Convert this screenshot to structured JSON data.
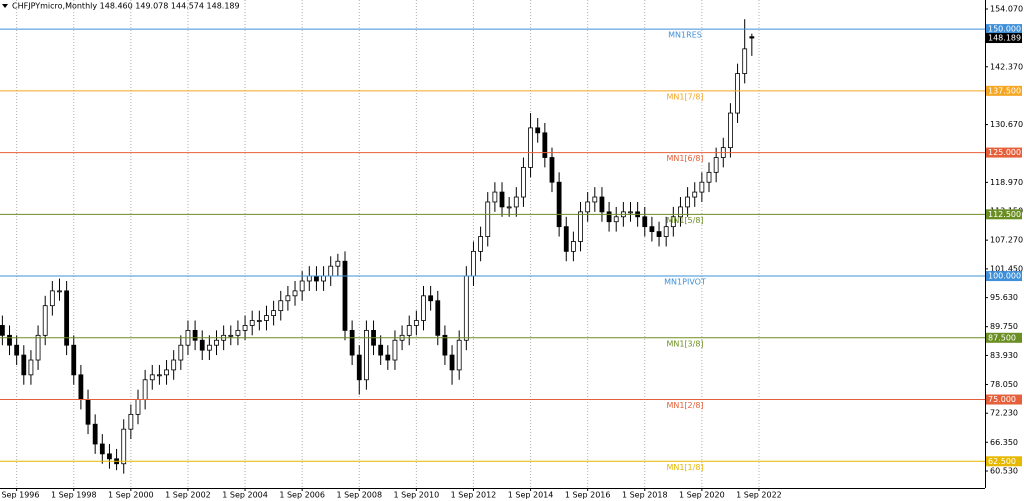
{
  "chart_data": {
    "type": "candlestick",
    "title": "CHFJPYmicro,Monthly 148.460 149.078 144.574 148.189",
    "x": [
      "1996-03",
      "1996-06",
      "1996-09",
      "1996-12",
      "1997-03",
      "1997-06",
      "1997-09",
      "1997-12",
      "1998-03",
      "1998-06",
      "1998-09",
      "1998-12",
      "1999-03",
      "1999-06",
      "1999-09",
      "1999-12",
      "2000-03",
      "2000-06",
      "2000-09",
      "2000-12",
      "2001-03",
      "2001-06",
      "2001-09",
      "2001-12",
      "2002-03",
      "2002-06",
      "2002-09",
      "2002-12",
      "2003-03",
      "2003-06",
      "2003-09",
      "2003-12",
      "2004-03",
      "2004-06",
      "2004-09",
      "2004-12",
      "2005-03",
      "2005-06",
      "2005-09",
      "2005-12",
      "2006-03",
      "2006-06",
      "2006-09",
      "2006-12",
      "2007-03",
      "2007-06",
      "2007-09",
      "2007-12",
      "2008-03",
      "2008-06",
      "2008-09",
      "2008-12",
      "2009-03",
      "2009-06",
      "2009-09",
      "2009-12",
      "2010-03",
      "2010-06",
      "2010-09",
      "2010-12",
      "2011-03",
      "2011-06",
      "2011-09",
      "2011-12",
      "2012-03",
      "2012-06",
      "2012-09",
      "2012-12",
      "2013-03",
      "2013-06",
      "2013-09",
      "2013-12",
      "2014-03",
      "2014-06",
      "2014-09",
      "2014-12",
      "2015-03",
      "2015-06",
      "2015-09",
      "2015-12",
      "2016-03",
      "2016-06",
      "2016-09",
      "2016-12",
      "2017-03",
      "2017-06",
      "2017-09",
      "2017-12",
      "2018-03",
      "2018-06",
      "2018-09",
      "2018-12",
      "2019-03",
      "2019-06",
      "2019-09",
      "2019-12",
      "2020-03",
      "2020-06",
      "2020-09",
      "2020-12",
      "2021-03",
      "2021-06",
      "2021-09",
      "2021-12",
      "2022-03",
      "2022-06"
    ],
    "open": [
      90,
      88,
      86,
      84,
      80,
      83,
      88,
      94,
      97,
      97,
      86,
      80,
      75,
      70,
      66,
      64,
      63,
      62,
      69,
      72,
      75,
      79,
      80,
      80,
      81,
      83,
      86,
      89,
      87,
      85,
      86,
      87,
      88,
      88,
      89,
      90,
      91,
      91,
      92,
      93,
      95,
      96,
      97,
      99,
      100,
      99,
      100,
      102,
      103,
      89,
      84,
      79,
      89,
      86,
      84,
      83,
      87,
      88,
      90,
      91,
      96,
      95,
      88,
      84,
      81,
      87,
      100,
      105,
      108,
      115,
      117,
      114,
      114,
      116,
      122,
      130,
      129,
      124,
      119,
      110,
      105,
      107,
      113,
      115,
      116,
      113,
      111,
      112,
      113,
      113,
      112,
      110,
      109,
      108,
      110,
      112,
      114,
      116,
      117,
      119,
      121,
      124,
      126,
      133,
      141,
      148.46
    ],
    "high": [
      92,
      90,
      88,
      86,
      85,
      90,
      96,
      99,
      99.5,
      99,
      88,
      82,
      77,
      72,
      68,
      66,
      65,
      71,
      74,
      77,
      81,
      82,
      82,
      83,
      85,
      88,
      91,
      91,
      89,
      88,
      89,
      90,
      90,
      91,
      92,
      93,
      93,
      94,
      95,
      97,
      98,
      99,
      101,
      102,
      102,
      102,
      104,
      104.5,
      105,
      91,
      86,
      91,
      91,
      88,
      86,
      89,
      90,
      92,
      93,
      98,
      98,
      97,
      90,
      86,
      89,
      102,
      107,
      110,
      117,
      119,
      119,
      116,
      118,
      124,
      133,
      132,
      131,
      126,
      121,
      112,
      109,
      115,
      117,
      118,
      118,
      115,
      114,
      115,
      115,
      115,
      114,
      112,
      111,
      112,
      114,
      116,
      118,
      119,
      121,
      123,
      126,
      128,
      135,
      143,
      152,
      149.078
    ],
    "low": [
      86,
      84,
      82,
      78,
      78,
      81,
      86,
      92,
      95,
      84,
      78,
      73,
      68,
      64,
      62,
      61,
      60.7,
      60,
      67,
      70,
      73,
      77,
      78,
      78,
      79,
      81,
      84,
      85,
      83,
      83,
      84,
      85,
      86,
      86,
      87,
      88,
      89,
      89,
      90,
      91,
      93,
      94,
      95,
      97,
      97,
      97,
      98,
      100,
      87,
      82,
      76,
      77,
      84,
      82,
      81,
      81,
      85,
      86,
      88,
      89,
      93,
      86,
      82,
      78,
      79,
      85,
      98,
      103,
      106,
      113,
      112,
      112,
      112,
      114,
      120,
      127,
      122,
      117,
      108,
      103,
      103,
      105,
      111,
      113,
      111,
      109,
      109,
      110,
      111,
      110,
      108,
      107,
      106,
      106,
      108,
      110,
      112,
      114,
      115,
      117,
      119,
      122,
      124,
      131,
      139,
      144.574
    ],
    "close": [
      88,
      86,
      84,
      80,
      83,
      88,
      94,
      97,
      97,
      86,
      80,
      75,
      70,
      66,
      64,
      63,
      62,
      69,
      72,
      75,
      79,
      80,
      80,
      81,
      83,
      86,
      89,
      87,
      85,
      86,
      87,
      88,
      88,
      89,
      90,
      91,
      91,
      92,
      93,
      95,
      96,
      97,
      99,
      100,
      99,
      100,
      102,
      103,
      89,
      84,
      79,
      89,
      86,
      84,
      83,
      87,
      88,
      90,
      91,
      96,
      95,
      88,
      84,
      81,
      87,
      100,
      105,
      108,
      115,
      117,
      114,
      114,
      116,
      122,
      130,
      129,
      124,
      119,
      110,
      105,
      107,
      113,
      115,
      116,
      113,
      111,
      112,
      113,
      113,
      112,
      110,
      109,
      108,
      110,
      112,
      114,
      116,
      117,
      119,
      121,
      124,
      126,
      133,
      141,
      146,
      148.189
    ],
    "up_color": "#ffffff",
    "down_color": "#000000",
    "xlim": [
      "1996-02",
      "2030-08"
    ],
    "xticks": [
      {
        "value": "1996-09",
        "label": "1 Sep 1996"
      },
      {
        "value": "1998-09",
        "label": "1 Sep 1998"
      },
      {
        "value": "2000-09",
        "label": "1 Sep 2000"
      },
      {
        "value": "2002-09",
        "label": "1 Sep 2002"
      },
      {
        "value": "2004-09",
        "label": "1 Sep 2004"
      },
      {
        "value": "2006-09",
        "label": "1 Sep 2006"
      },
      {
        "value": "2008-09",
        "label": "1 Sep 2008"
      },
      {
        "value": "2010-09",
        "label": "1 Sep 2010"
      },
      {
        "value": "2012-09",
        "label": "1 Sep 2012"
      },
      {
        "value": "2014-09",
        "label": "1 Sep 2014"
      },
      {
        "value": "2016-09",
        "label": "1 Sep 2016"
      },
      {
        "value": "2018-09",
        "label": "1 Sep 2018"
      },
      {
        "value": "2020-09",
        "label": "1 Sep 2020"
      },
      {
        "value": "2022-09",
        "label": "1 Sep 2022"
      }
    ],
    "ylim": [
      57.09,
      155.89
    ],
    "yticks": [
      {
        "value": 154.07,
        "label": "154.070"
      },
      {
        "value": 142.37,
        "label": "142.370"
      },
      {
        "value": 130.67,
        "label": "130.670"
      },
      {
        "value": 118.97,
        "label": "118.970"
      },
      {
        "value": 113.15,
        "label": "113.150"
      },
      {
        "value": 107.27,
        "label": "107.270"
      },
      {
        "value": 101.45,
        "label": "101.450"
      },
      {
        "value": 95.63,
        "label": "95.630"
      },
      {
        "value": 89.75,
        "label": "89.750"
      },
      {
        "value": 83.93,
        "label": "83.930"
      },
      {
        "value": 78.05,
        "label": "78.050"
      },
      {
        "value": 72.23,
        "label": "72.230"
      },
      {
        "value": 66.35,
        "label": "66.350"
      },
      {
        "value": 60.53,
        "label": "60.530"
      }
    ],
    "levels": [
      {
        "name": "MN1RES",
        "value": 150,
        "label": "150.000",
        "color": "#3d8fd9"
      },
      {
        "name": "MN1[7/8]",
        "value": 137.5,
        "label": "137.500",
        "color": "#f5a623"
      },
      {
        "name": "MN1[6/8]",
        "value": 125,
        "label": "125.000",
        "color": "#e5603a"
      },
      {
        "name": "MN1[5/8]",
        "value": 112.5,
        "label": "112.500",
        "color": "#6b8e23"
      },
      {
        "name": "MN1PIVOT",
        "value": 100,
        "label": "100.000",
        "color": "#3d8fd9"
      },
      {
        "name": "MN1[3/8]",
        "value": 87.5,
        "label": "87.500",
        "color": "#6b8e23"
      },
      {
        "name": "MN1[2/8]",
        "value": 75,
        "label": "75.000",
        "color": "#e5603a"
      },
      {
        "name": "MN1[1/8]",
        "value": 62.5,
        "label": "62.500",
        "color": "#e6b800"
      }
    ],
    "grid": true
  }
}
